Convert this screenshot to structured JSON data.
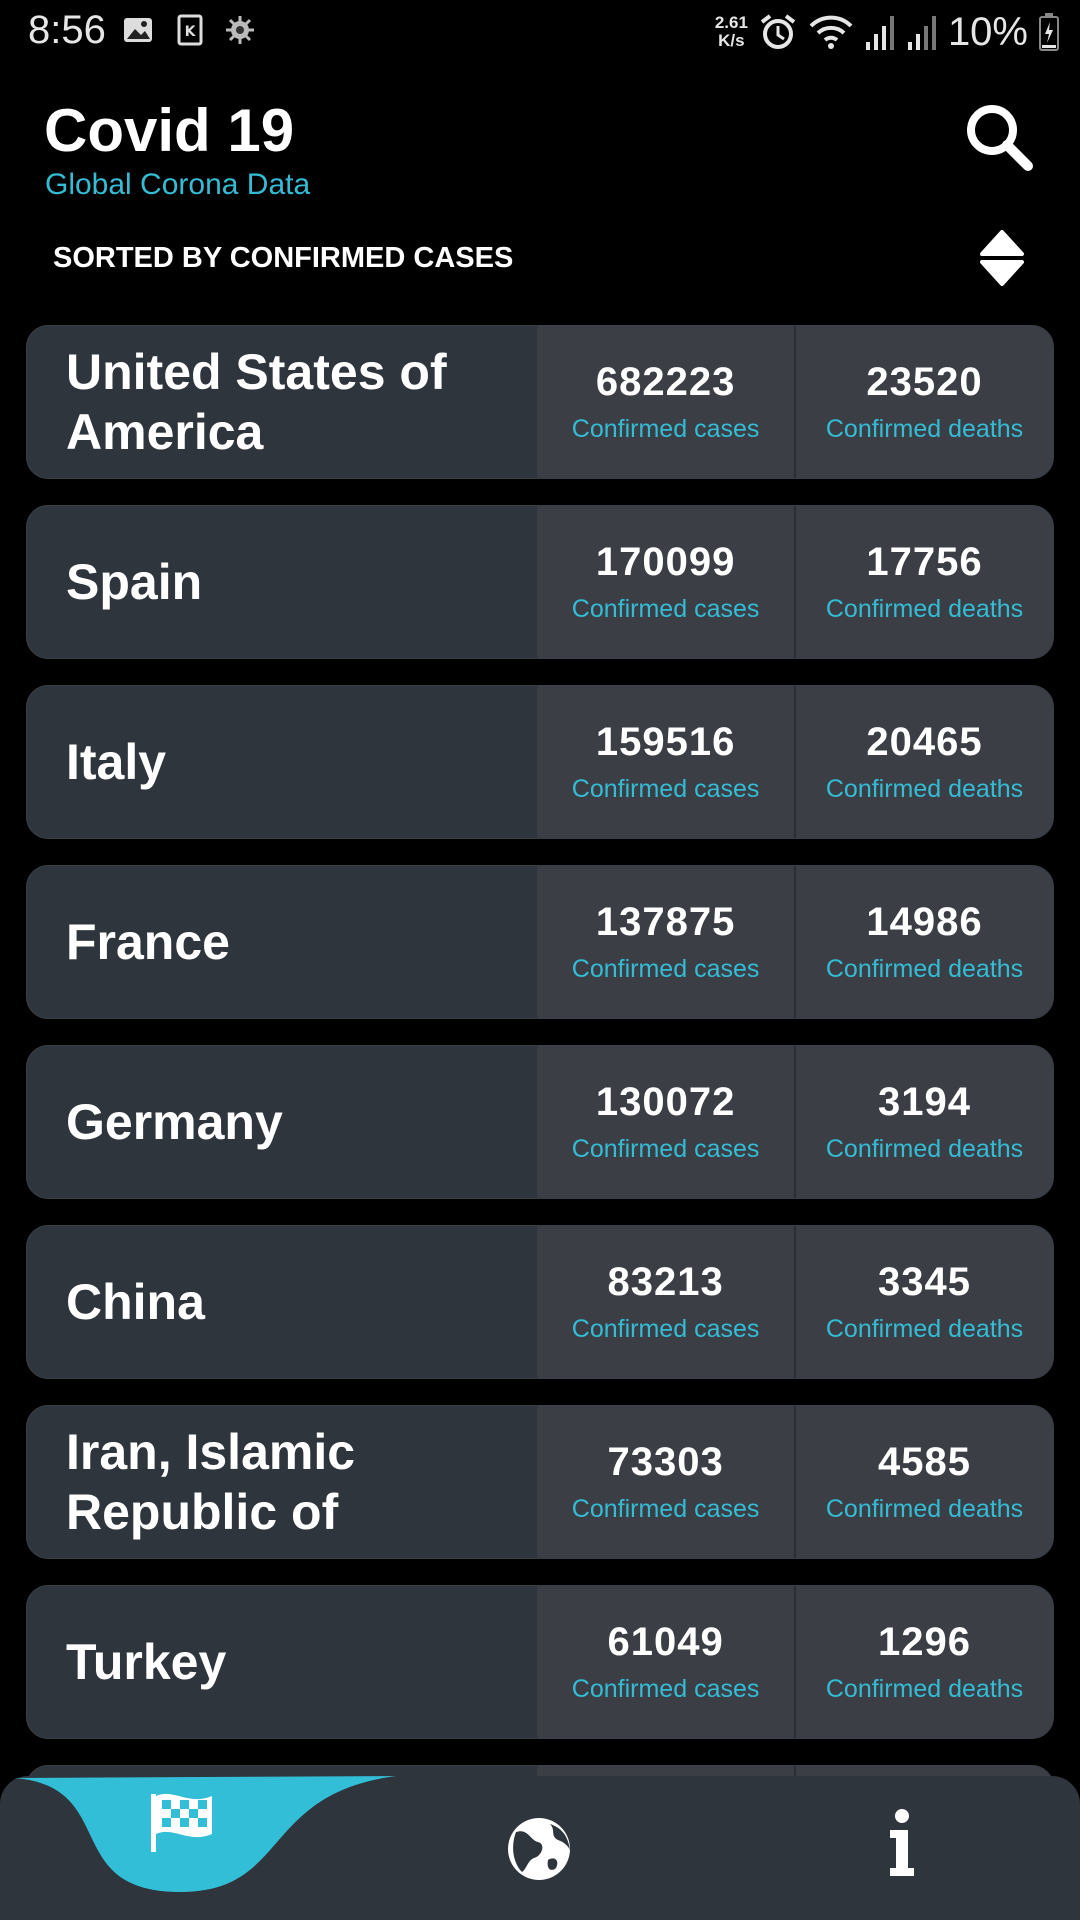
{
  "status_bar": {
    "time": "8:56",
    "speed_value": "2.61",
    "speed_unit": "K/s",
    "battery": "10%"
  },
  "header": {
    "title": "Covid 19",
    "subtitle": "Global Corona Data",
    "sort_label": "SORTED BY CONFIRMED CASES"
  },
  "countries": [
    {
      "name": "United States of America",
      "cases": "682223",
      "cases_label": "Confirmed cases",
      "deaths": "23520",
      "deaths_label": "Confirmed deaths"
    },
    {
      "name": "Spain",
      "cases": "170099",
      "cases_label": "Confirmed cases",
      "deaths": "17756",
      "deaths_label": "Confirmed deaths"
    },
    {
      "name": "Italy",
      "cases": "159516",
      "cases_label": "Confirmed cases",
      "deaths": "20465",
      "deaths_label": "Confirmed deaths"
    },
    {
      "name": "France",
      "cases": "137875",
      "cases_label": "Confirmed cases",
      "deaths": "14986",
      "deaths_label": "Confirmed deaths"
    },
    {
      "name": "Germany",
      "cases": "130072",
      "cases_label": "Confirmed cases",
      "deaths": "3194",
      "deaths_label": "Confirmed deaths"
    },
    {
      "name": "China",
      "cases": "83213",
      "cases_label": "Confirmed cases",
      "deaths": "3345",
      "deaths_label": "Confirmed deaths"
    },
    {
      "name": "Iran, Islamic Republic of",
      "cases": "73303",
      "cases_label": "Confirmed cases",
      "deaths": "4585",
      "deaths_label": "Confirmed deaths"
    },
    {
      "name": "Turkey",
      "cases": "61049",
      "cases_label": "Confirmed cases",
      "deaths": "1296",
      "deaths_label": "Confirmed deaths"
    }
  ],
  "bottom_nav": {
    "items": [
      {
        "icon": "checkered-flag-icon",
        "active": true
      },
      {
        "icon": "globe-icon",
        "active": false
      },
      {
        "icon": "info-icon",
        "active": false
      }
    ]
  },
  "colors": {
    "accent": "#35bcd5",
    "background": "#000000",
    "card": "#2f353d",
    "stat_cell": "#3b3e44"
  }
}
